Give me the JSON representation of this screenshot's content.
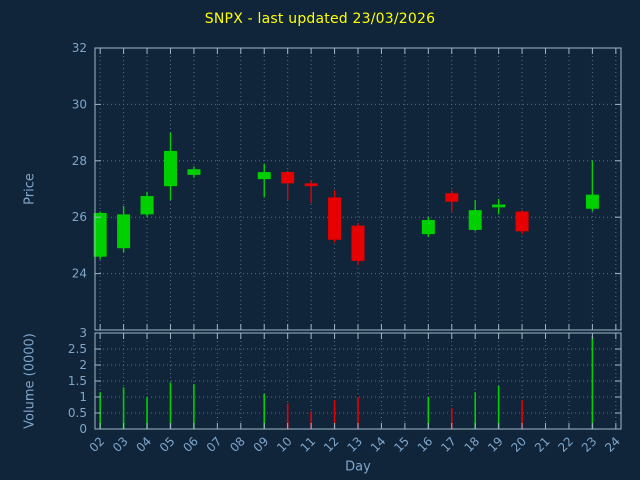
{
  "title": "SNPX - last updated 23/03/2026",
  "colors": {
    "background": "#102539",
    "title": "#ffff00",
    "tick_text": "#7fa6cc",
    "axis_label": "#7fa6cc",
    "border": "#9fb6c9",
    "grid": "#51708f",
    "up": "#00d000",
    "down": "#e60000"
  },
  "chart_data": {
    "type": "candlestick",
    "title": "SNPX - last updated 23/03/2026",
    "xlabel": "Day",
    "price_ylabel": "Price",
    "volume_ylabel": "Volume (0000)",
    "grid": true,
    "xlim": [
      1.78,
      24.22
    ],
    "price_ylim": [
      22,
      32
    ],
    "volume_ylim": [
      0,
      3
    ],
    "price_ticks": [
      24,
      26,
      28,
      30,
      32
    ],
    "volume_ticks": [
      0,
      0.5,
      1,
      1.5,
      2,
      2.5,
      3
    ],
    "x_tick_values": [
      2,
      3,
      4,
      5,
      6,
      7,
      8,
      9,
      10,
      11,
      12,
      13,
      14,
      15,
      16,
      17,
      18,
      19,
      20,
      21,
      22,
      23,
      24
    ],
    "x_tick_labels": [
      "02",
      "03",
      "04",
      "05",
      "06",
      "07",
      "08",
      "09",
      "10",
      "11",
      "12",
      "13",
      "14",
      "15",
      "16",
      "17",
      "18",
      "19",
      "20",
      "21",
      "22",
      "23",
      "24"
    ],
    "candles": [
      {
        "day": 2,
        "open": 24.6,
        "high": 26.2,
        "low": 24.5,
        "close": 26.15,
        "volume": 1.15
      },
      {
        "day": 3,
        "open": 24.9,
        "high": 26.4,
        "low": 24.75,
        "close": 26.1,
        "volume": 1.3
      },
      {
        "day": 4,
        "open": 26.1,
        "high": 26.9,
        "low": 26.0,
        "close": 26.75,
        "volume": 1.0
      },
      {
        "day": 5,
        "open": 27.1,
        "high": 29.0,
        "low": 26.6,
        "close": 28.35,
        "volume": 1.45
      },
      {
        "day": 6,
        "open": 27.5,
        "high": 27.8,
        "low": 27.4,
        "close": 27.7,
        "volume": 1.4
      },
      {
        "day": 9,
        "open": 27.35,
        "high": 27.9,
        "low": 26.7,
        "close": 27.6,
        "volume": 1.1
      },
      {
        "day": 10,
        "open": 27.6,
        "high": 27.65,
        "low": 26.6,
        "close": 27.2,
        "volume": 0.8
      },
      {
        "day": 11,
        "open": 27.2,
        "high": 27.3,
        "low": 26.5,
        "close": 27.1,
        "volume": 0.55
      },
      {
        "day": 12,
        "open": 26.7,
        "high": 26.95,
        "low": 25.1,
        "close": 25.2,
        "volume": 0.9
      },
      {
        "day": 13,
        "open": 25.7,
        "high": 25.8,
        "low": 24.3,
        "close": 24.45,
        "volume": 1.0
      },
      {
        "day": 16,
        "open": 25.4,
        "high": 26.0,
        "low": 25.3,
        "close": 25.9,
        "volume": 1.0
      },
      {
        "day": 17,
        "open": 26.85,
        "high": 26.95,
        "low": 26.2,
        "close": 26.55,
        "volume": 0.65
      },
      {
        "day": 18,
        "open": 25.55,
        "high": 26.6,
        "low": 25.5,
        "close": 26.25,
        "volume": 1.15
      },
      {
        "day": 19,
        "open": 26.35,
        "high": 26.65,
        "low": 26.1,
        "close": 26.45,
        "volume": 1.35
      },
      {
        "day": 20,
        "open": 26.2,
        "high": 26.25,
        "low": 25.4,
        "close": 25.5,
        "volume": 0.9
      },
      {
        "day": 23,
        "open": 26.3,
        "high": 28.0,
        "low": 26.2,
        "close": 26.8,
        "volume": 2.9
      }
    ]
  }
}
